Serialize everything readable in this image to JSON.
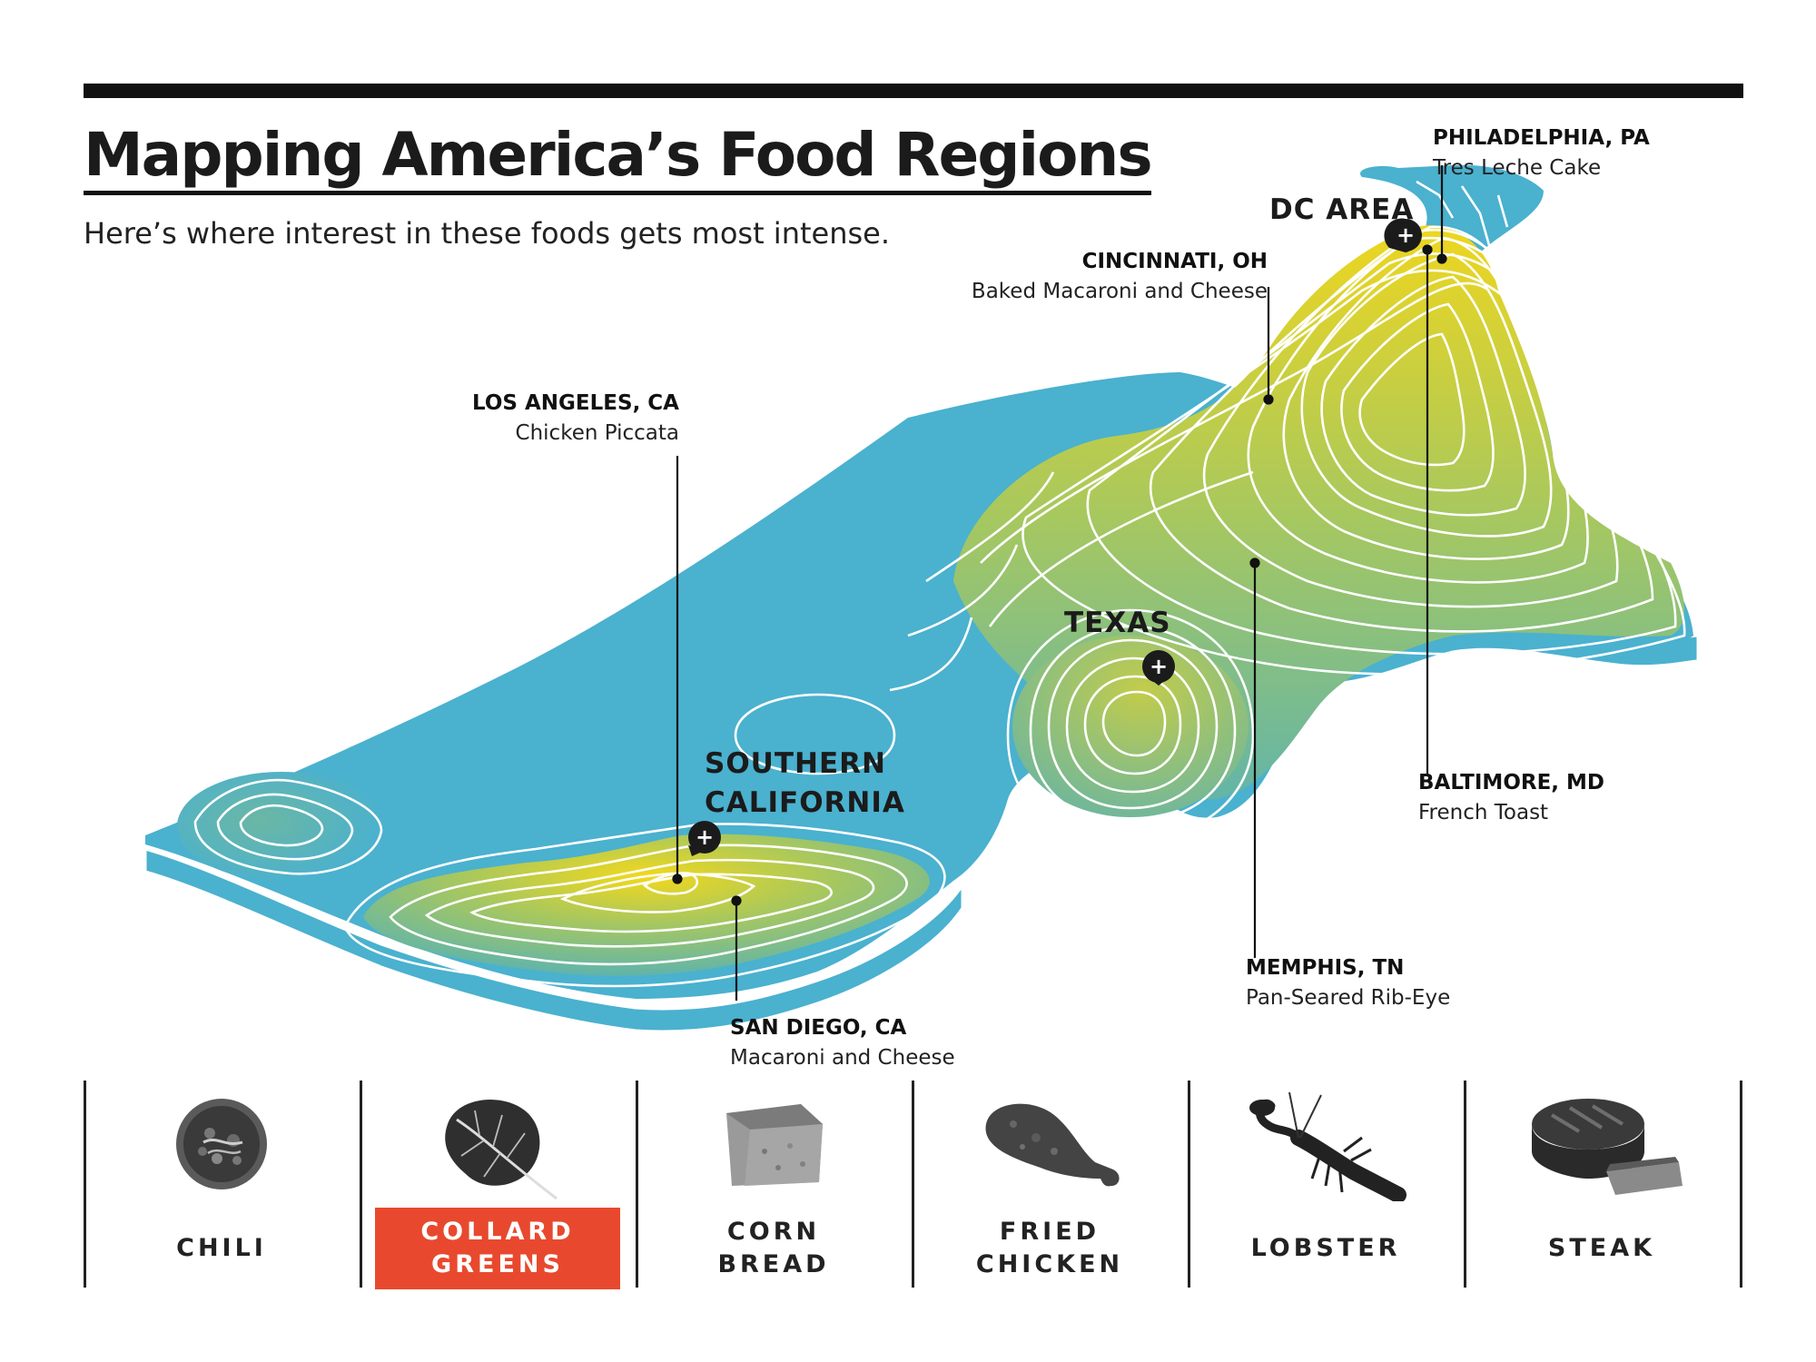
{
  "header": {
    "title": "Mapping America’s Food Regions",
    "subtitle": "Here’s where interest in these foods gets most intense."
  },
  "map": {
    "land_color": "#4ab1cf",
    "contour_color": "#ffffff",
    "low_color": "#4ab1cf",
    "mid_color": "#a8c85e",
    "high_color": "#f2d81c",
    "marker_color": "#1b1b1b",
    "marker_glyph": "+"
  },
  "regions": [
    {
      "label": "DC AREA"
    },
    {
      "label": "TEXAS"
    },
    {
      "label": "SOUTHERN\nCALIFORNIA"
    }
  ],
  "callouts": [
    {
      "city": "PHILADELPHIA, PA",
      "food": "Tres Leche Cake"
    },
    {
      "city": "CINCINNATI, OH",
      "food": "Baked Macaroni and Cheese"
    },
    {
      "city": "LOS ANGELES, CA",
      "food": "Chicken Piccata"
    },
    {
      "city": "BALTIMORE, MD",
      "food": "French Toast"
    },
    {
      "city": "MEMPHIS, TN",
      "food": "Pan-Seared Rib-Eye"
    },
    {
      "city": "SAN DIEGO, CA",
      "food": "Macaroni and Cheese"
    }
  ],
  "foods": [
    {
      "label": "CHILI",
      "icon": "chili-bowl-icon",
      "selected": false
    },
    {
      "label": "COLLARD\nGREENS",
      "icon": "collard-leaf-icon",
      "selected": true
    },
    {
      "label": "CORN\nBREAD",
      "icon": "cornbread-icon",
      "selected": false
    },
    {
      "label": "FRIED\nCHICKEN",
      "icon": "drumstick-icon",
      "selected": false
    },
    {
      "label": "LOBSTER",
      "icon": "lobster-icon",
      "selected": false
    },
    {
      "label": "STEAK",
      "icon": "steak-icon",
      "selected": false
    }
  ],
  "colors": {
    "selected_background": "#e8492e",
    "selected_text": "#ffffff"
  }
}
